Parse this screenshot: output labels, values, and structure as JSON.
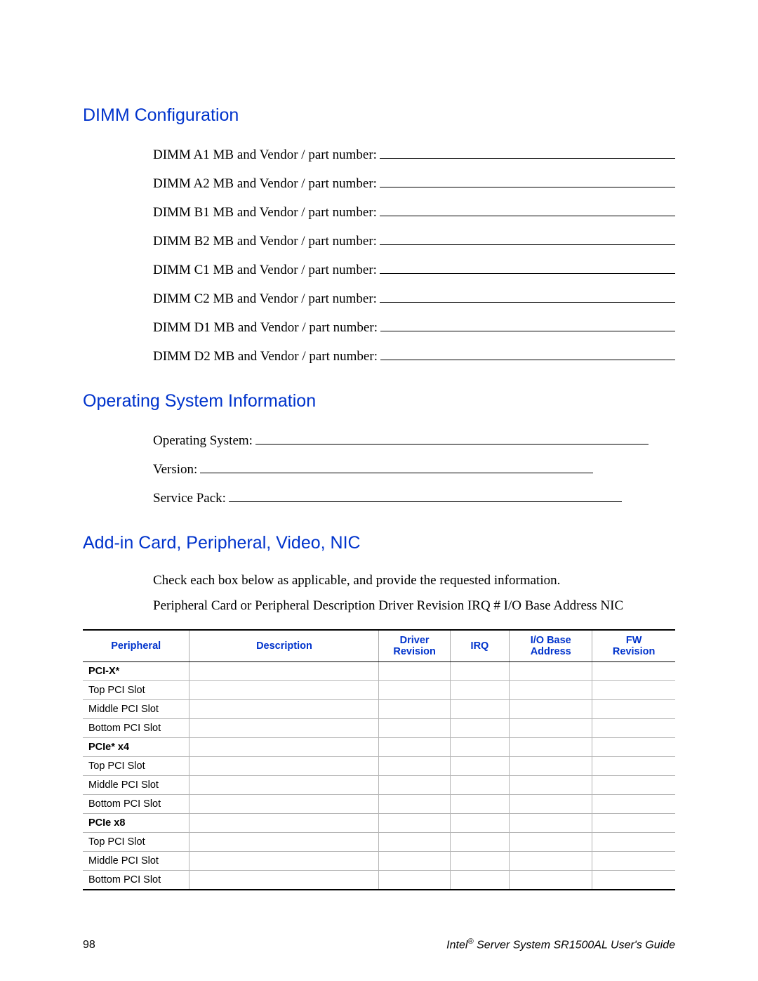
{
  "section1": {
    "heading": "DIMM Configuration",
    "lines": [
      "DIMM A1 MB and Vendor / part number:",
      "DIMM A2 MB and Vendor / part number:",
      "DIMM B1 MB and Vendor / part number:",
      "DIMM B2 MB and Vendor / part number:",
      "DIMM C1 MB and Vendor / part number:",
      "DIMM C2 MB and Vendor / part number:",
      "DIMM D1 MB and Vendor / part number:",
      "DIMM D2 MB and Vendor / part number:"
    ]
  },
  "section2": {
    "heading": "Operating System Information",
    "lines": [
      "Operating System:",
      "Version:",
      "Service Pack:"
    ]
  },
  "section3": {
    "heading": "Add-in Card, Peripheral, Video, NIC",
    "intro1": "Check each box below as applicable, and provide the requested information.",
    "intro2": "Peripheral Card or Peripheral Description Driver Revision IRQ # I/O Base Address NIC"
  },
  "table": {
    "columns": [
      "Peripheral",
      "Description",
      "Driver Revision",
      "IRQ",
      "I/O Base Address",
      "FW Revision"
    ],
    "col_header_html": {
      "c2": "Driver<br>Revision",
      "c4": "I/O Base<br>Address",
      "c5": "FW<br>Revision"
    },
    "rows": [
      {
        "label": "PCI-X*",
        "type": "group"
      },
      {
        "label": "Top PCI Slot",
        "type": "row"
      },
      {
        "label": "Middle PCI Slot",
        "type": "row"
      },
      {
        "label": "Bottom PCI Slot",
        "type": "row"
      },
      {
        "label": "PCIe* x4",
        "type": "group"
      },
      {
        "label": "Top PCI Slot",
        "type": "row"
      },
      {
        "label": "Middle PCI Slot",
        "type": "row"
      },
      {
        "label": "Bottom PCI Slot",
        "type": "row"
      },
      {
        "label": "PCIe x8",
        "type": "group"
      },
      {
        "label": "Top PCI Slot",
        "type": "row"
      },
      {
        "label": "Middle PCI Slot",
        "type": "row"
      },
      {
        "label": "Bottom PCI Slot",
        "type": "row"
      }
    ]
  },
  "footer": {
    "page": "98",
    "title_pre": "Intel",
    "title_post": " Server System SR1500AL User's Guide"
  },
  "colors": {
    "heading": "#0033cc",
    "text": "#000000",
    "rule_dark": "#000000",
    "rule_light": "#b5b5b5",
    "background": "#ffffff"
  },
  "fonts": {
    "heading_family": "Arial",
    "body_family": "Times New Roman",
    "table_family": "Arial",
    "heading_size_pt": 19,
    "body_size_pt": 14,
    "table_size_pt": 11
  }
}
